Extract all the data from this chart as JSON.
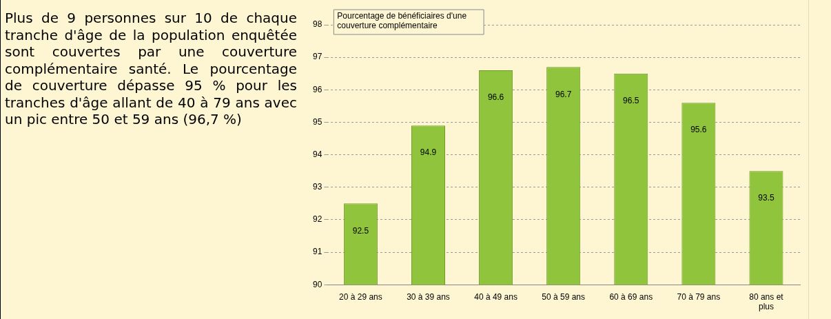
{
  "chart_data": {
    "type": "bar",
    "title": "Pourcentage de bénéficiaires d'une couverture complémentaire",
    "categories": [
      "20 à 29 ans",
      "30 à 39 ans",
      "40 à 49 ans",
      "50 à 59 ans",
      "60 à 69 ans",
      "70 à 79 ans",
      "80 ans et plus"
    ],
    "values": [
      92.5,
      94.9,
      96.6,
      96.7,
      96.5,
      95.6,
      93.5
    ],
    "color": "#8fc43c",
    "ylim": [
      90,
      98
    ],
    "yticks": [
      90,
      91,
      92,
      93,
      94,
      95,
      96,
      97,
      98
    ],
    "grid": "y",
    "data_labels": true,
    "annotations": [
      "Plus de 9 personnes sur 10 de chaque tranche d'âge de la population enquêtée sont couvertes par une couverture complémentaire santé. Le pourcentage de couverture dépasse 95 % pour les tranches d'âge allant de 40 à 79 ans avec un pic entre 50 et 59 ans (96,7 %)"
    ]
  }
}
